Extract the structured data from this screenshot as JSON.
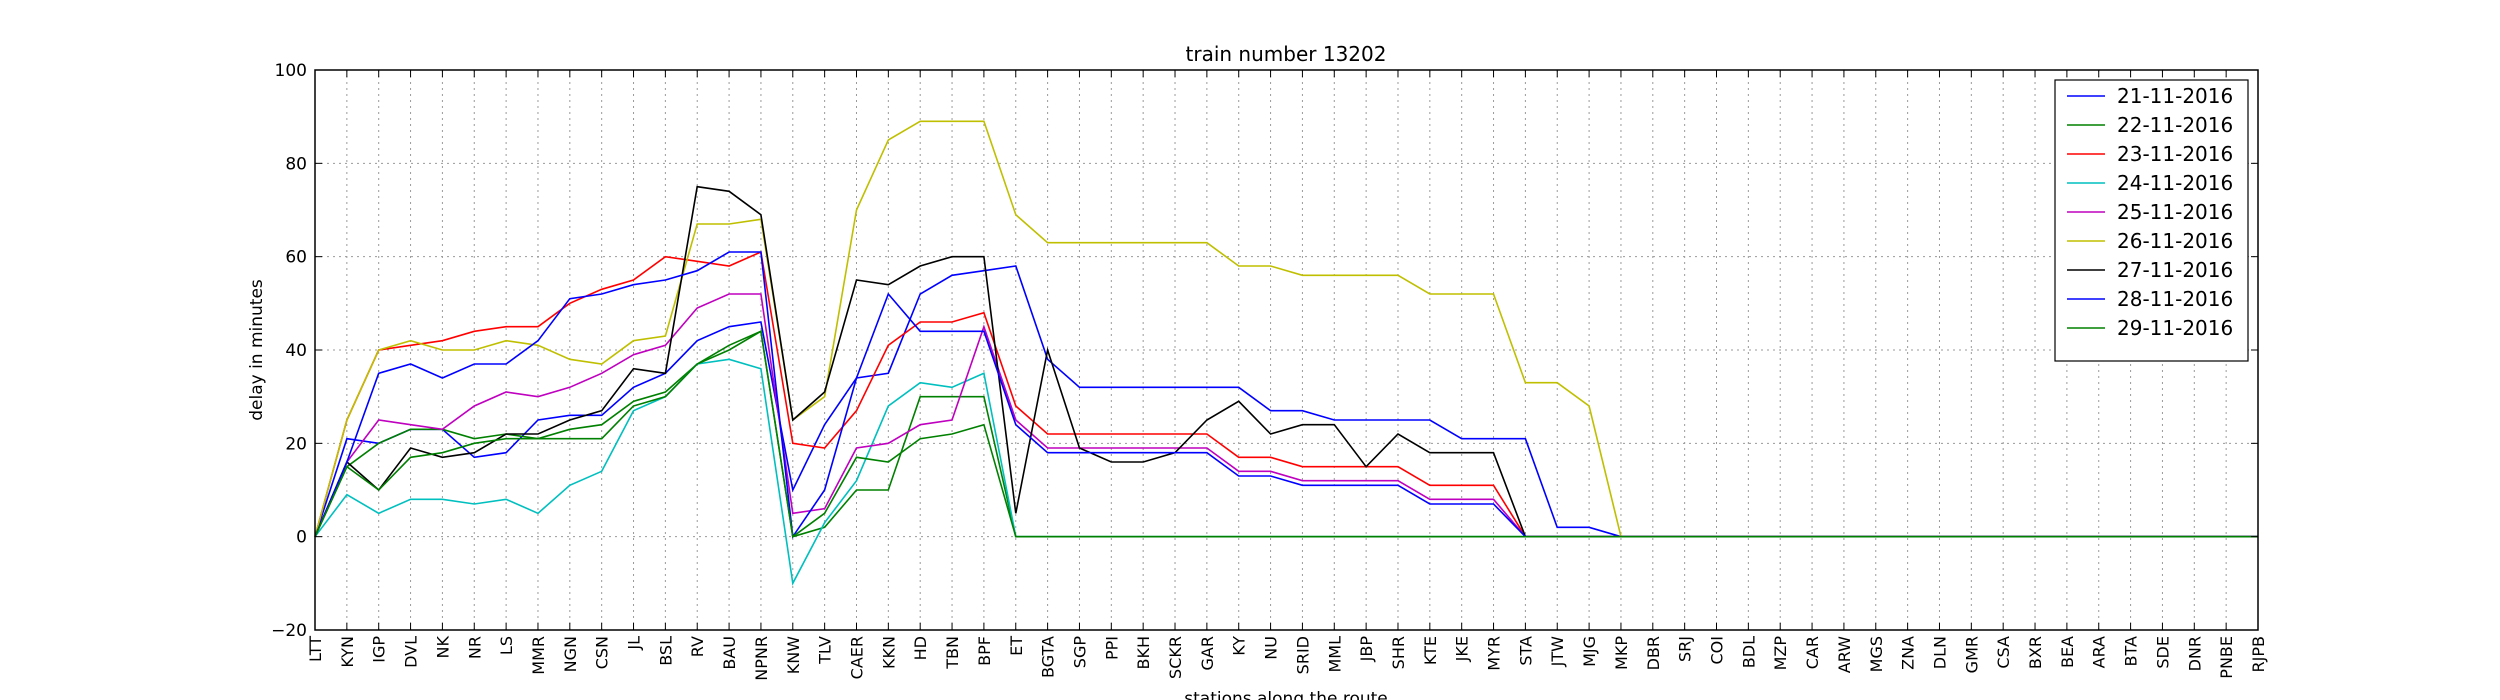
{
  "chart_data": {
    "type": "line",
    "title": "train number 13202",
    "xlabel": "stations along the route",
    "ylabel": "delay in minutes",
    "ylim": [
      -20,
      100
    ],
    "yticks": [
      -20,
      0,
      20,
      40,
      60,
      80,
      100
    ],
    "grid": true,
    "legend_position": "top-right",
    "categories": [
      "LTT",
      "KYN",
      "IGP",
      "DVL",
      "NK",
      "NR",
      "LS",
      "MMR",
      "NGN",
      "CSN",
      "JL",
      "BSL",
      "RV",
      "BAU",
      "NPNR",
      "KNW",
      "TLV",
      "CAER",
      "KKN",
      "HD",
      "TBN",
      "BPF",
      "ET",
      "BGTA",
      "SGP",
      "PPI",
      "BKH",
      "SCKR",
      "GAR",
      "KY",
      "NU",
      "SRID",
      "MML",
      "JBP",
      "SHR",
      "KTE",
      "JKE",
      "MYR",
      "STA",
      "JTW",
      "MJG",
      "MKP",
      "DBR",
      "SRJ",
      "COI",
      "BDL",
      "MZP",
      "CAR",
      "ARW",
      "MGS",
      "ZNA",
      "DLN",
      "GMR",
      "CSA",
      "BXR",
      "BEA",
      "ARA",
      "BTA",
      "SDE",
      "DNR",
      "PNBE",
      "RJPB"
    ],
    "series": [
      {
        "name": "21-11-2016",
        "color": "#0000ff",
        "values": [
          0,
          21,
          20,
          23,
          23,
          17,
          18,
          25,
          26,
          26,
          32,
          35,
          42,
          45,
          46,
          10,
          24,
          34,
          35,
          52,
          56,
          57,
          58,
          38,
          32,
          32,
          32,
          32,
          32,
          32,
          27,
          27,
          25,
          25,
          25,
          25,
          21,
          21,
          21,
          2,
          2,
          0,
          0,
          0,
          0,
          0,
          0,
          0,
          0,
          0,
          0,
          0,
          0,
          0,
          0,
          0,
          0,
          0,
          0,
          0,
          0,
          0
        ]
      },
      {
        "name": "22-11-2016",
        "color": "#008000",
        "values": [
          0,
          15,
          20,
          23,
          23,
          21,
          22,
          21,
          23,
          24,
          29,
          31,
          37,
          41,
          44,
          0,
          2,
          10,
          10,
          30,
          30,
          30,
          0,
          0,
          0,
          0,
          0,
          0,
          0,
          0,
          0,
          0,
          0,
          0,
          0,
          0,
          0,
          0,
          0,
          0,
          0,
          0,
          0,
          0,
          0,
          0,
          0,
          0,
          0,
          0,
          0,
          0,
          0,
          0,
          0,
          0,
          0,
          0,
          0,
          0,
          0,
          0
        ]
      },
      {
        "name": "23-11-2016",
        "color": "#ff0000",
        "values": [
          0,
          25,
          40,
          41,
          42,
          44,
          45,
          45,
          50,
          53,
          55,
          60,
          59,
          58,
          61,
          20,
          19,
          27,
          41,
          46,
          46,
          48,
          28,
          22,
          22,
          22,
          22,
          22,
          22,
          17,
          17,
          15,
          15,
          15,
          15,
          11,
          11,
          11,
          0,
          0,
          0,
          0,
          0,
          0,
          0,
          0,
          0,
          0,
          0,
          0,
          0,
          0,
          0,
          0,
          0,
          0,
          0,
          0,
          0,
          0,
          0,
          0
        ]
      },
      {
        "name": "24-11-2016",
        "color": "#00bfbf",
        "values": [
          0,
          9,
          5,
          8,
          8,
          7,
          8,
          5,
          11,
          14,
          27,
          30,
          37,
          38,
          36,
          -10,
          3,
          12,
          28,
          33,
          32,
          35,
          0,
          0,
          0,
          0,
          0,
          0,
          0,
          0,
          0,
          0,
          0,
          0,
          0,
          0,
          0,
          0,
          0,
          0,
          0,
          0,
          0,
          0,
          0,
          0,
          0,
          0,
          0,
          0,
          0,
          0,
          0,
          0,
          0,
          0,
          0,
          0,
          0,
          0,
          0,
          0
        ]
      },
      {
        "name": "25-11-2016",
        "color": "#bf00bf",
        "values": [
          0,
          16,
          25,
          24,
          23,
          28,
          31,
          30,
          32,
          35,
          39,
          41,
          49,
          52,
          52,
          5,
          6,
          19,
          20,
          24,
          25,
          45,
          25,
          19,
          19,
          19,
          19,
          19,
          19,
          14,
          14,
          12,
          12,
          12,
          12,
          8,
          8,
          8,
          0,
          0,
          0,
          0,
          0,
          0,
          0,
          0,
          0,
          0,
          0,
          0,
          0,
          0,
          0,
          0,
          0,
          0,
          0,
          0,
          0,
          0,
          0,
          0
        ]
      },
      {
        "name": "26-11-2016",
        "color": "#bfbf00",
        "values": [
          0,
          25,
          40,
          42,
          40,
          40,
          42,
          41,
          38,
          37,
          42,
          43,
          67,
          67,
          68,
          25,
          30,
          70,
          85,
          89,
          89,
          89,
          69,
          63,
          63,
          63,
          63,
          63,
          63,
          58,
          58,
          56,
          56,
          56,
          56,
          52,
          52,
          52,
          33,
          33,
          28,
          0,
          0,
          0,
          0,
          0,
          0,
          0,
          0,
          0,
          0,
          0,
          0,
          0,
          0,
          0,
          0,
          0,
          0,
          0,
          0,
          0
        ]
      },
      {
        "name": "27-11-2016",
        "color": "#000000",
        "values": [
          0,
          16,
          10,
          19,
          17,
          18,
          22,
          22,
          25,
          27,
          36,
          35,
          75,
          74,
          69,
          25,
          31,
          55,
          54,
          58,
          60,
          60,
          5,
          40,
          19,
          16,
          16,
          18,
          25,
          29,
          22,
          24,
          24,
          15,
          22,
          18,
          18,
          18,
          0,
          0,
          0,
          0,
          0,
          0,
          0,
          0,
          0,
          0,
          0,
          0,
          0,
          0,
          0,
          0,
          0,
          0,
          0,
          0,
          0,
          0,
          0,
          0
        ]
      },
      {
        "name": "28-11-2016",
        "color": "#0000ff",
        "values": [
          0,
          16,
          35,
          37,
          34,
          37,
          37,
          42,
          51,
          52,
          54,
          55,
          57,
          61,
          61,
          0,
          10,
          34,
          52,
          44,
          44,
          44,
          24,
          18,
          18,
          18,
          18,
          18,
          18,
          13,
          13,
          11,
          11,
          11,
          11,
          7,
          7,
          7,
          0,
          0,
          0,
          0,
          0,
          0,
          0,
          0,
          0,
          0,
          0,
          0,
          0,
          0,
          0,
          0,
          0,
          0,
          0,
          0,
          0,
          0,
          0,
          0
        ]
      },
      {
        "name": "29-11-2016",
        "color": "#008000",
        "values": [
          0,
          15,
          10,
          17,
          18,
          20,
          21,
          21,
          21,
          21,
          28,
          30,
          37,
          40,
          44,
          0,
          5,
          17,
          16,
          21,
          22,
          24,
          0,
          0,
          0,
          0,
          0,
          0,
          0,
          0,
          0,
          0,
          0,
          0,
          0,
          0,
          0,
          0,
          0,
          0,
          0,
          0,
          0,
          0,
          0,
          0,
          0,
          0,
          0,
          0,
          0,
          0,
          0,
          0,
          0,
          0,
          0,
          0,
          0,
          0,
          0,
          0
        ]
      }
    ]
  }
}
